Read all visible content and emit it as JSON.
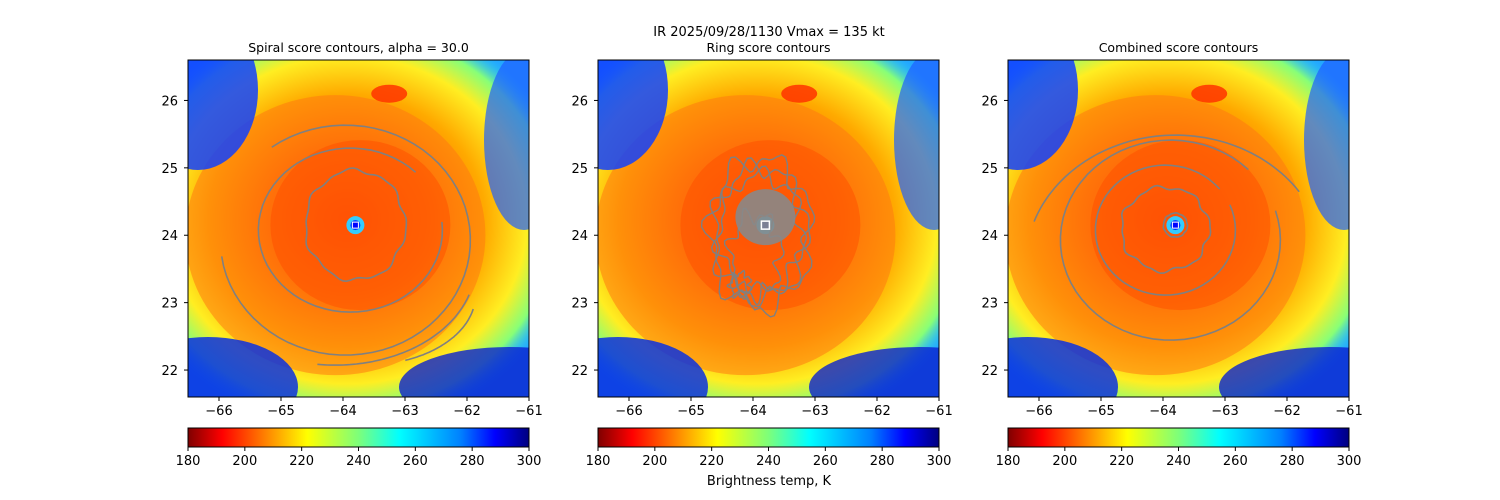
{
  "figure": {
    "suptitle_line1": "IR  2025/09/28/1130    Vmax = 135 kt",
    "colorbar_label": "Brightness temp, K"
  },
  "colors": {
    "contour": "#808080",
    "eye_marker": "#ffffff",
    "center_marker": "#0000ff",
    "colormap": "jet_r"
  },
  "chart_data": [
    {
      "type": "heatmap",
      "title": "Spiral score contours, alpha = 30.0",
      "xlim": [
        -66.5,
        -61.0
      ],
      "ylim": [
        21.6,
        26.6
      ],
      "xticks": [
        -66,
        -65,
        -64,
        -63,
        -62,
        -61
      ],
      "yticks": [
        22,
        23,
        24,
        25,
        26
      ],
      "center": [
        -63.8,
        24.15
      ],
      "contours": "spiral",
      "colorbar": {
        "range": [
          180,
          300
        ],
        "ticks": [
          180,
          200,
          220,
          240,
          260,
          280,
          300
        ],
        "label": ""
      }
    },
    {
      "type": "heatmap",
      "title": "Ring score contours",
      "xlim": [
        -66.5,
        -61.0
      ],
      "ylim": [
        21.6,
        26.6
      ],
      "xticks": [
        -66,
        -65,
        -64,
        -63,
        -62,
        -61
      ],
      "yticks": [
        22,
        23,
        24,
        25,
        26
      ],
      "center": [
        -63.8,
        24.15
      ],
      "contours": "ring",
      "colorbar": {
        "range": [
          180,
          300
        ],
        "ticks": [
          180,
          200,
          220,
          240,
          260,
          280,
          300
        ],
        "label": "Brightness temp, K"
      }
    },
    {
      "type": "heatmap",
      "title": "Combined score contours",
      "xlim": [
        -66.5,
        -61.0
      ],
      "ylim": [
        21.6,
        26.6
      ],
      "xticks": [
        -66,
        -65,
        -64,
        -63,
        -62,
        -61
      ],
      "yticks": [
        22,
        23,
        24,
        25,
        26
      ],
      "center": [
        -63.8,
        24.15
      ],
      "contours": "combined",
      "colorbar": {
        "range": [
          180,
          300
        ],
        "ticks": [
          180,
          200,
          220,
          240,
          260,
          280,
          300
        ],
        "label": ""
      }
    }
  ]
}
